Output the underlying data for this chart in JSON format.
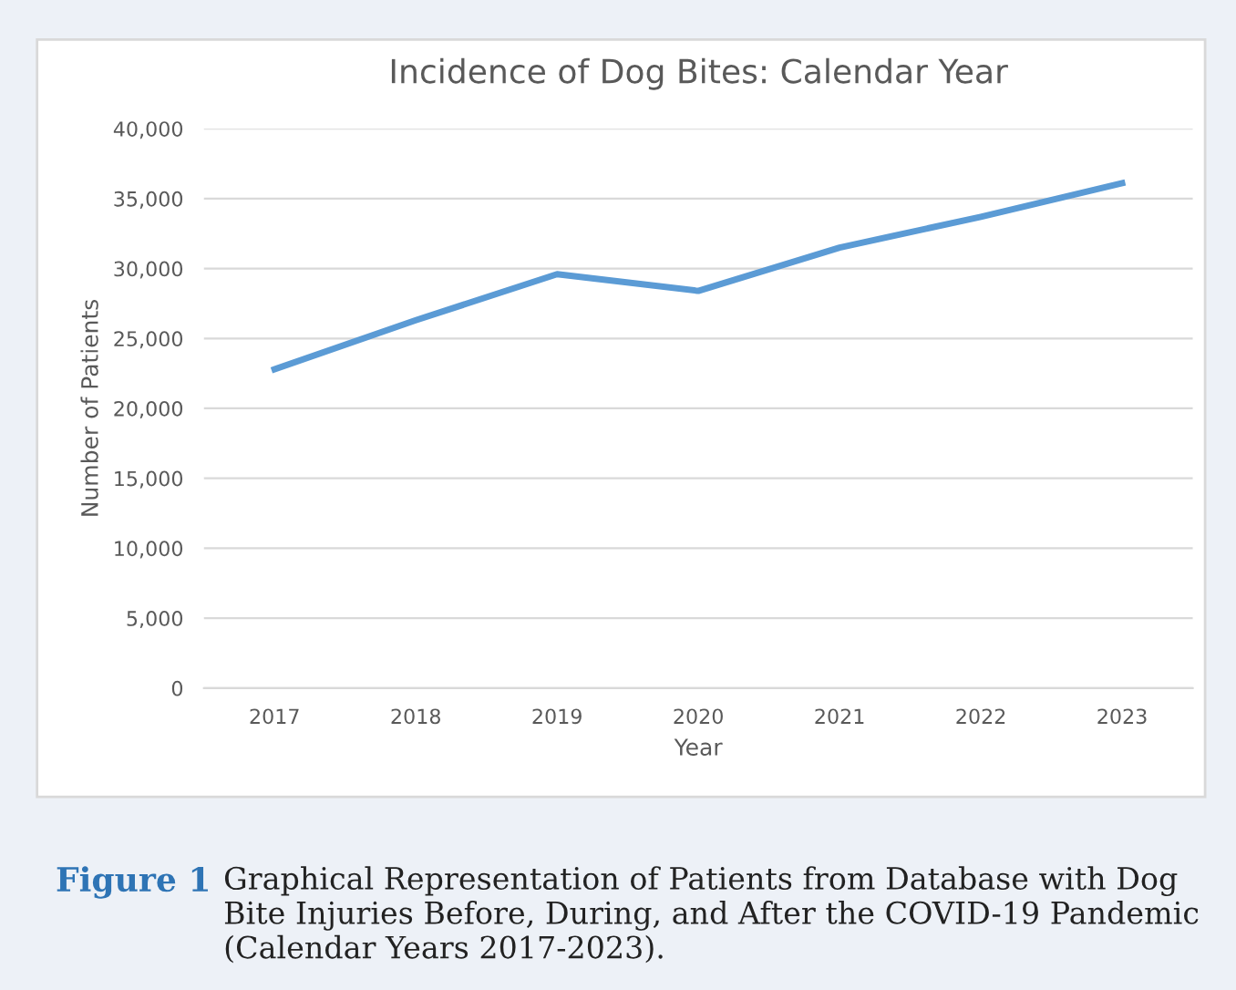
{
  "chart_data": {
    "type": "line",
    "title": "Incidence of Dog Bites: Calendar Year",
    "xlabel": "Year",
    "ylabel": "Number of Patients",
    "categories": [
      "2017",
      "2018",
      "2019",
      "2020",
      "2021",
      "2022",
      "2023"
    ],
    "series": [
      {
        "color": "#5b9bd5",
        "values": [
          22800,
          26300,
          29600,
          28400,
          31500,
          33700,
          36100
        ]
      }
    ],
    "ylim": [
      0,
      40000
    ],
    "yticks": [
      {
        "value": 0,
        "label": "0"
      },
      {
        "value": 5000,
        "label": "5,000"
      },
      {
        "value": 10000,
        "label": "10,000"
      },
      {
        "value": 15000,
        "label": "15,000"
      },
      {
        "value": 20000,
        "label": "20,000"
      },
      {
        "value": 25000,
        "label": "25,000"
      },
      {
        "value": 30000,
        "label": "30,000"
      },
      {
        "value": 35000,
        "label": "35,000"
      },
      {
        "value": 40000,
        "label": "40,000"
      }
    ],
    "grid": "y",
    "marker": "none",
    "line_style": "solid",
    "legend": false,
    "annotations": [
      "Figure 1",
      "Graphical Representation of Patients from Database with Dog Bite Injuries Before, During, and After the COVID-19 Pandemic (Calendar Years 2017-2023)."
    ]
  }
}
